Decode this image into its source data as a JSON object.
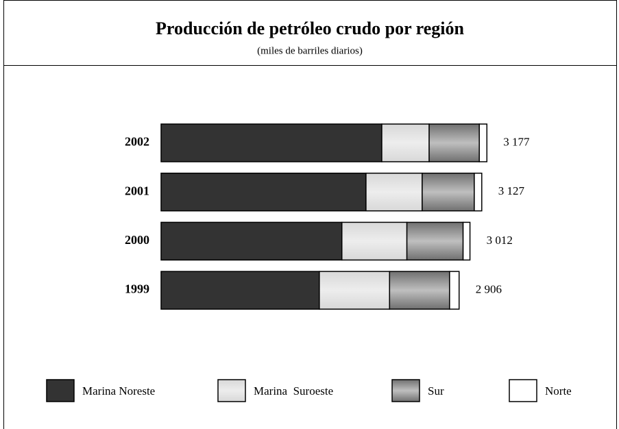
{
  "chart_data": {
    "type": "stacked-barh",
    "title": "Producción de petróleo crudo por región",
    "subtitle": "(miles de barriles diarios)",
    "categories": [
      "2002",
      "2001",
      "2000",
      "1999"
    ],
    "series": [
      {
        "name": "Marina Noreste",
        "color": "#333333",
        "values": [
          2152,
          1998,
          1763,
          1543
        ]
      },
      {
        "name": "Marina  Suroeste",
        "color": "#d8d8d8",
        "values": [
          462,
          548,
          634,
          685
        ]
      },
      {
        "name": "Sur",
        "color": "#707070",
        "values": [
          489,
          508,
          548,
          585
        ]
      },
      {
        "name": "Norte",
        "color": "#ffffff",
        "values": [
          74,
          73,
          67,
          93
        ]
      }
    ],
    "totals": {
      "values": [
        3177,
        3127,
        3012,
        2906
      ],
      "value_labels": [
        "3 177",
        "3 127",
        "3 012",
        "2 906"
      ]
    }
  }
}
